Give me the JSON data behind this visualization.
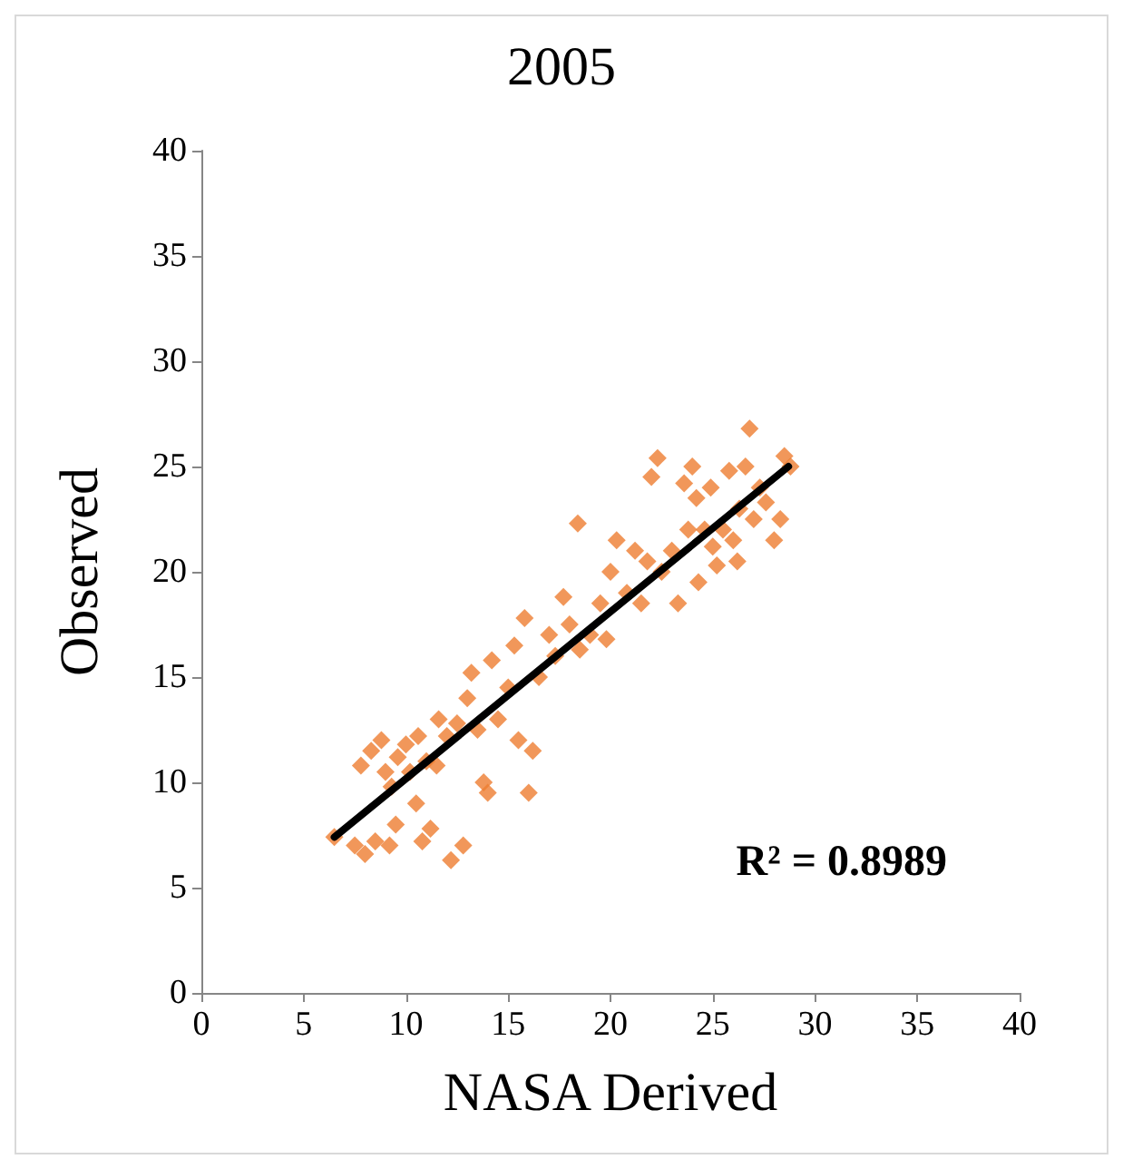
{
  "chart_data": {
    "type": "scatter",
    "title": "2005",
    "xlabel": "NASA Derived",
    "ylabel": "Observed",
    "xlim": [
      0,
      40
    ],
    "ylim": [
      0,
      40
    ],
    "xticks": [
      0,
      5,
      10,
      15,
      20,
      25,
      30,
      35,
      40
    ],
    "yticks": [
      0,
      5,
      10,
      15,
      20,
      25,
      30,
      35,
      40
    ],
    "grid": false,
    "marker": "diamond",
    "annotations": [
      "R² = 0.8989"
    ],
    "series": [
      {
        "color": "#ed7d31",
        "x": [
          6.5,
          7.5,
          8,
          8.5,
          7.8,
          8.3,
          8.8,
          9,
          9.3,
          9.6,
          10,
          10.2,
          10.5,
          10.8,
          11.2,
          11.5,
          12,
          12.2,
          12.8,
          11.6,
          10.6,
          9.5,
          9.2,
          11,
          12.5,
          13,
          13.5,
          13.8,
          14,
          13.2,
          14.2,
          14.5,
          15,
          15.3,
          15.5,
          16,
          16.2,
          15.8,
          16.5,
          17,
          17.3,
          17.7,
          18,
          18.4,
          18.5,
          19,
          19.5,
          19.8,
          20,
          20.3,
          20.8,
          21.2,
          21.5,
          21.8,
          22.3,
          22,
          22.5,
          23,
          23.3,
          23.8,
          24,
          24.2,
          24.6,
          24.9,
          25.2,
          25.5,
          25.8,
          26,
          26.3,
          26.6,
          26.8,
          27,
          27.3,
          27.6,
          28,
          28.3,
          28.5,
          28.8,
          26.2,
          25,
          24.3,
          23.6
        ],
        "values": [
          7.4,
          7,
          6.6,
          7.2,
          10.8,
          11.5,
          12,
          10.5,
          9.8,
          11.2,
          11.8,
          10.5,
          9,
          7.2,
          7.8,
          10.8,
          12.2,
          6.3,
          7,
          13,
          12.2,
          8,
          7,
          11,
          12.8,
          14,
          12.5,
          10,
          9.5,
          15.2,
          15.8,
          13,
          14.5,
          16.5,
          12,
          9.5,
          11.5,
          17.8,
          15,
          17,
          16,
          18.8,
          17.5,
          22.3,
          16.3,
          17,
          18.5,
          16.8,
          20,
          21.5,
          19,
          21,
          18.5,
          20.5,
          25.4,
          24.5,
          20,
          21,
          18.5,
          22,
          25,
          23.5,
          22,
          24,
          20.3,
          22,
          24.8,
          21.5,
          23,
          25,
          26.8,
          22.5,
          24,
          23.3,
          21.5,
          22.5,
          25.5,
          25,
          20.5,
          21.2,
          19.5,
          24.2
        ]
      },
      {
        "type": "line",
        "color": "#000000",
        "marker": "none",
        "line_style": "solid",
        "x": [
          6.5,
          28.7
        ],
        "values": [
          7.4,
          25.0
        ]
      }
    ]
  }
}
